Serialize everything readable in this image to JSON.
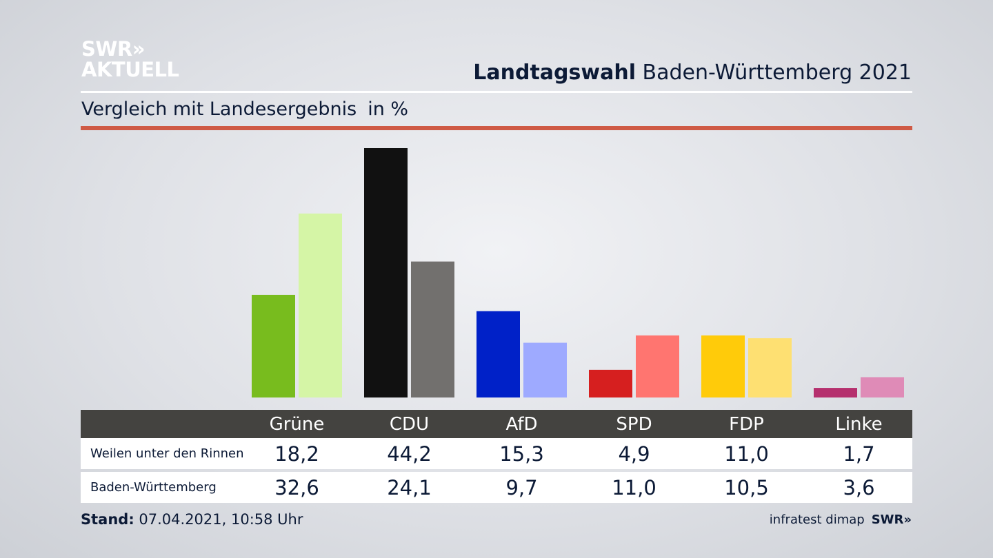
{
  "logo": {
    "line1": "SWR»",
    "line2": "AKTUELL"
  },
  "title": {
    "bold": "Landtagswahl",
    "rest": " Baden-Württemberg 2021"
  },
  "subtitle": {
    "text": "Vergleich mit Landesergebnis",
    "unit": "in %"
  },
  "chart_data": {
    "type": "bar",
    "title": "Landtagswahl Baden-Württemberg 2021",
    "subtitle": "Vergleich mit Landesergebnis in %",
    "categories": [
      "Grüne",
      "CDU",
      "AfD",
      "SPD",
      "FDP",
      "Linke"
    ],
    "series": [
      {
        "name": "Weilen unter den Rinnen",
        "values": [
          18.2,
          44.2,
          15.3,
          4.9,
          11.0,
          1.7
        ],
        "display": [
          "18,2",
          "44,2",
          "15,3",
          "4,9",
          "11,0",
          "1,7"
        ]
      },
      {
        "name": "Baden-Württemberg",
        "values": [
          32.6,
          24.1,
          9.7,
          11.0,
          10.5,
          3.6
        ],
        "display": [
          "32,6",
          "24,1",
          "9,7",
          "11,0",
          "10,5",
          "3,6"
        ]
      }
    ],
    "colors": {
      "primary": [
        "#78bc1e",
        "#111111",
        "#0021c8",
        "#d61f1f",
        "#ffcb0a",
        "#b5306e"
      ],
      "secondary": [
        "#d5f5a6",
        "#72706e",
        "#9eaaff",
        "#ff7570",
        "#fee072",
        "#df8bb7"
      ]
    },
    "ylim": [
      0,
      44.2
    ],
    "grid": false,
    "legend": "table-below"
  },
  "footer": {
    "stand_label": "Stand:",
    "stand_value": " 07.04.2021, 10:58 Uhr",
    "source": "infratest dimap",
    "brand": "SWR»"
  }
}
